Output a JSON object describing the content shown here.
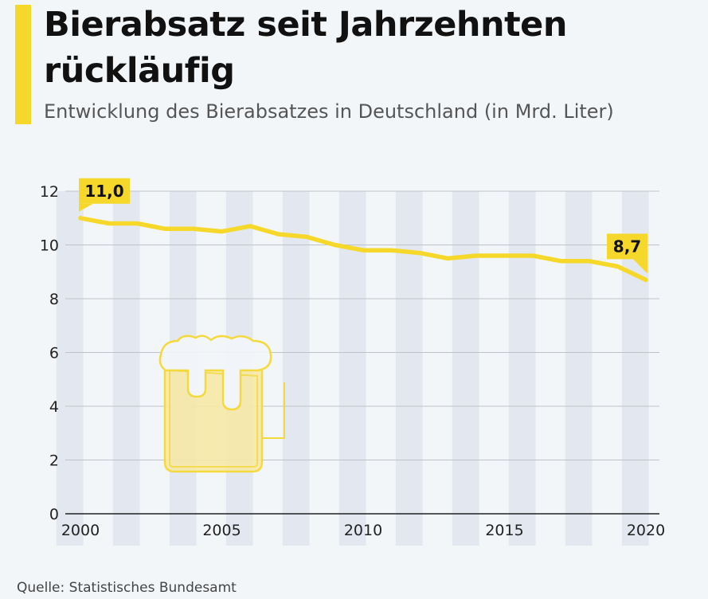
{
  "header": {
    "title": "Bierabsatz seit Jahrzehnten rückläufig",
    "subtitle": "Entwicklung des Bierabsatzes in Deutschland (in Mrd. Liter)"
  },
  "footer": {
    "source": "Quelle: Statistisches Bundesamt"
  },
  "colors": {
    "accent": "#f5d82a",
    "line": "#f5d82a",
    "band": "#e3e7f0",
    "grid": "#bfc3c9",
    "beer_icon": "#f5d82a"
  },
  "icons": {
    "decoration": "beer-mug-icon"
  },
  "chart_data": {
    "type": "line",
    "title": "Bierabsatz seit Jahrzehnten rückläufig",
    "subtitle": "Entwicklung des Bierabsatzes in Deutschland (in Mrd. Liter)",
    "xlabel": "",
    "ylabel": "",
    "x": [
      2000,
      2001,
      2002,
      2003,
      2004,
      2005,
      2006,
      2007,
      2008,
      2009,
      2010,
      2011,
      2012,
      2013,
      2014,
      2015,
      2016,
      2017,
      2018,
      2019,
      2020
    ],
    "series": [
      {
        "name": "",
        "values": [
          11.0,
          10.8,
          10.8,
          10.6,
          10.6,
          10.5,
          10.7,
          10.4,
          10.3,
          10.0,
          9.8,
          9.8,
          9.7,
          9.5,
          9.6,
          9.6,
          9.6,
          9.4,
          9.4,
          9.2,
          8.7
        ]
      }
    ],
    "xlim": [
      2000,
      2020
    ],
    "ylim": [
      0,
      12
    ],
    "x_ticks": [
      "2000",
      "2005",
      "2010",
      "2015",
      "2020"
    ],
    "y_ticks": [
      "0",
      "2",
      "4",
      "6",
      "8",
      "10",
      "12"
    ],
    "annotations": [
      {
        "x": 2000,
        "label": "11,0"
      },
      {
        "x": 2020,
        "label": "8,7"
      }
    ],
    "grid": true,
    "legend": "none"
  }
}
